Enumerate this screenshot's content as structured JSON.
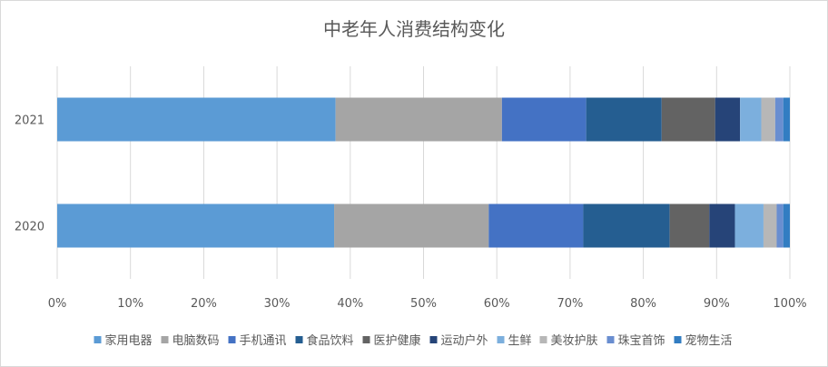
{
  "chart_data": {
    "type": "bar",
    "orientation": "horizontal",
    "stacked": "percent",
    "title": "中老年人消费结构变化",
    "xlabel": "",
    "ylabel": "",
    "categories": [
      "2021",
      "2020"
    ],
    "xlim": [
      0,
      100
    ],
    "x_ticks": [
      "0%",
      "10%",
      "20%",
      "30%",
      "40%",
      "50%",
      "60%",
      "70%",
      "80%",
      "90%",
      "100%"
    ],
    "grid": true,
    "legend_position": "bottom",
    "series": [
      {
        "name": "家用电器",
        "color": "#5b9bd5",
        "values": [
          38.0,
          37.8
        ]
      },
      {
        "name": "电脑数码",
        "color": "#a5a5a5",
        "values": [
          22.7,
          21.1
        ]
      },
      {
        "name": "手机通讯",
        "color": "#4472c4",
        "values": [
          11.5,
          12.9
        ]
      },
      {
        "name": "食品饮料",
        "color": "#255e91",
        "values": [
          10.3,
          11.8
        ]
      },
      {
        "name": "医护健康",
        "color": "#636363",
        "values": [
          7.3,
          5.4
        ]
      },
      {
        "name": "运动户外",
        "color": "#264478",
        "values": [
          3.4,
          3.5
        ]
      },
      {
        "name": "生鲜",
        "color": "#7cafdd",
        "values": [
          2.9,
          3.9
        ]
      },
      {
        "name": "美妆护肤",
        "color": "#b7b7b7",
        "values": [
          1.9,
          1.8
        ]
      },
      {
        "name": "珠宝首饰",
        "color": "#698ed0",
        "values": [
          1.1,
          0.9
        ]
      },
      {
        "name": "宠物生活",
        "color": "#327dc2",
        "values": [
          0.9,
          0.9
        ]
      }
    ]
  }
}
